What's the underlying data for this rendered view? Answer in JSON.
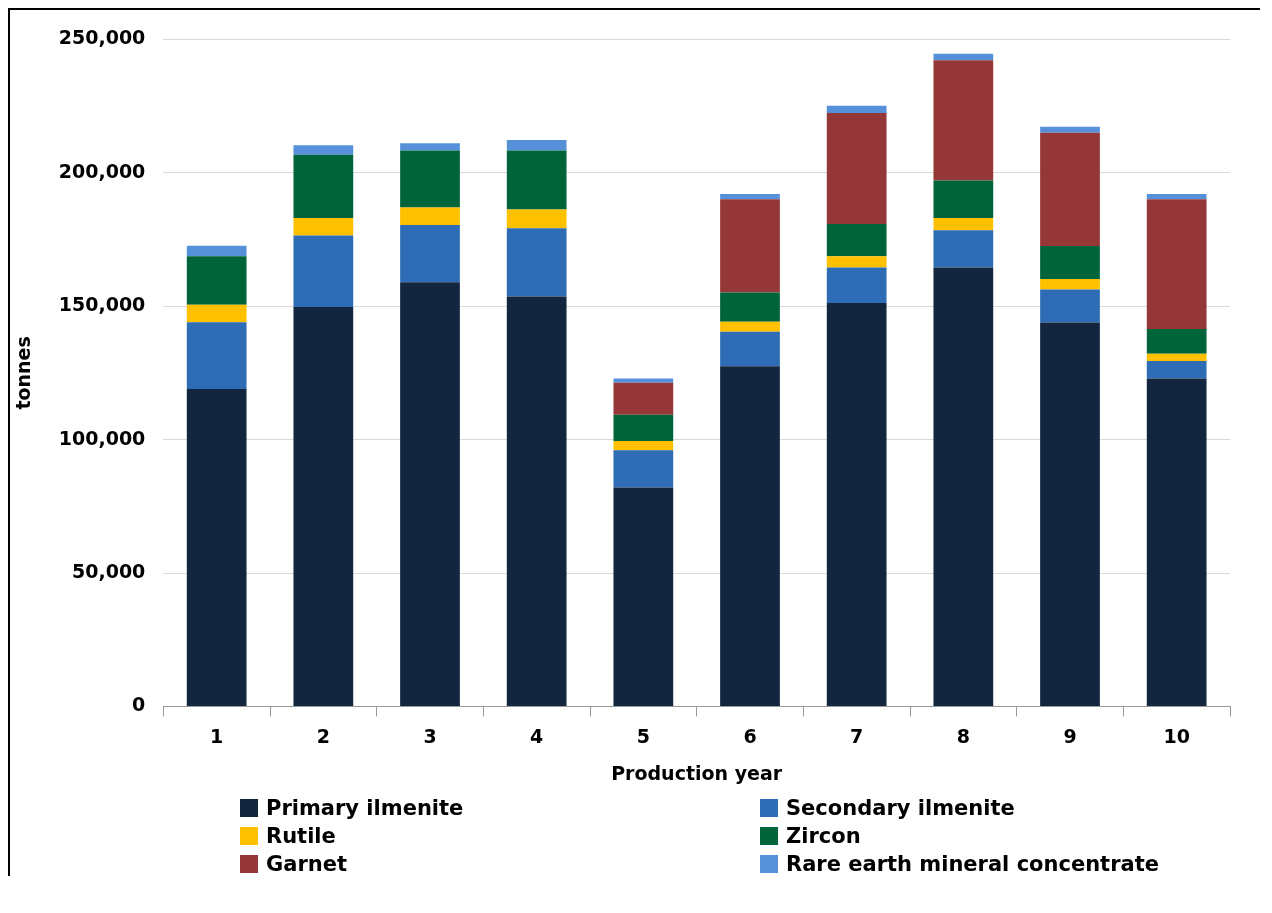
{
  "chart_data": {
    "type": "bar",
    "stacked": true,
    "xlabel": "Production year",
    "ylabel": "tonnes",
    "categories": [
      "1",
      "2",
      "3",
      "4",
      "5",
      "6",
      "7",
      "8",
      "9",
      "10"
    ],
    "ylim": [
      0,
      250000
    ],
    "yticks": [
      0,
      {
        "value": 50000,
        "label": "50,000"
      },
      {
        "value": 100000,
        "label": "100,000"
      },
      {
        "value": 150000,
        "label": "150,000"
      },
      {
        "value": 200000,
        "label": "200,000"
      },
      {
        "value": 250000,
        "label": "250,000"
      }
    ],
    "grid": "y",
    "legend": "bottom",
    "series": [
      {
        "name": "Primary ilmenite",
        "color": "#12263f",
        "values": [
          119000,
          149700,
          159000,
          153600,
          82000,
          127500,
          151200,
          164500,
          143900,
          122900
        ]
      },
      {
        "name": "Secondary ilmenite",
        "color": "#2e6db5",
        "values": [
          25000,
          26800,
          21400,
          25600,
          14000,
          12900,
          13300,
          14000,
          12400,
          6600
        ]
      },
      {
        "name": "Rutile",
        "color": "#ffc000",
        "values": [
          6500,
          6600,
          6600,
          7000,
          3500,
          3800,
          4200,
          4600,
          3900,
          2700
        ]
      },
      {
        "name": "Zircon",
        "color": "#00643a",
        "values": [
          18200,
          23700,
          21400,
          22200,
          9800,
          10900,
          12100,
          14000,
          12400,
          9300
        ]
      },
      {
        "name": "Garnet",
        "color": "#963737",
        "values": [
          0,
          0,
          0,
          0,
          12000,
          35000,
          41600,
          45100,
          42400,
          48600
        ]
      },
      {
        "name": "Rare earth mineral concentrate",
        "color": "#5590d9",
        "values": [
          4000,
          3500,
          2700,
          3900,
          1600,
          2000,
          2700,
          2400,
          2300,
          2000
        ]
      }
    ]
  }
}
